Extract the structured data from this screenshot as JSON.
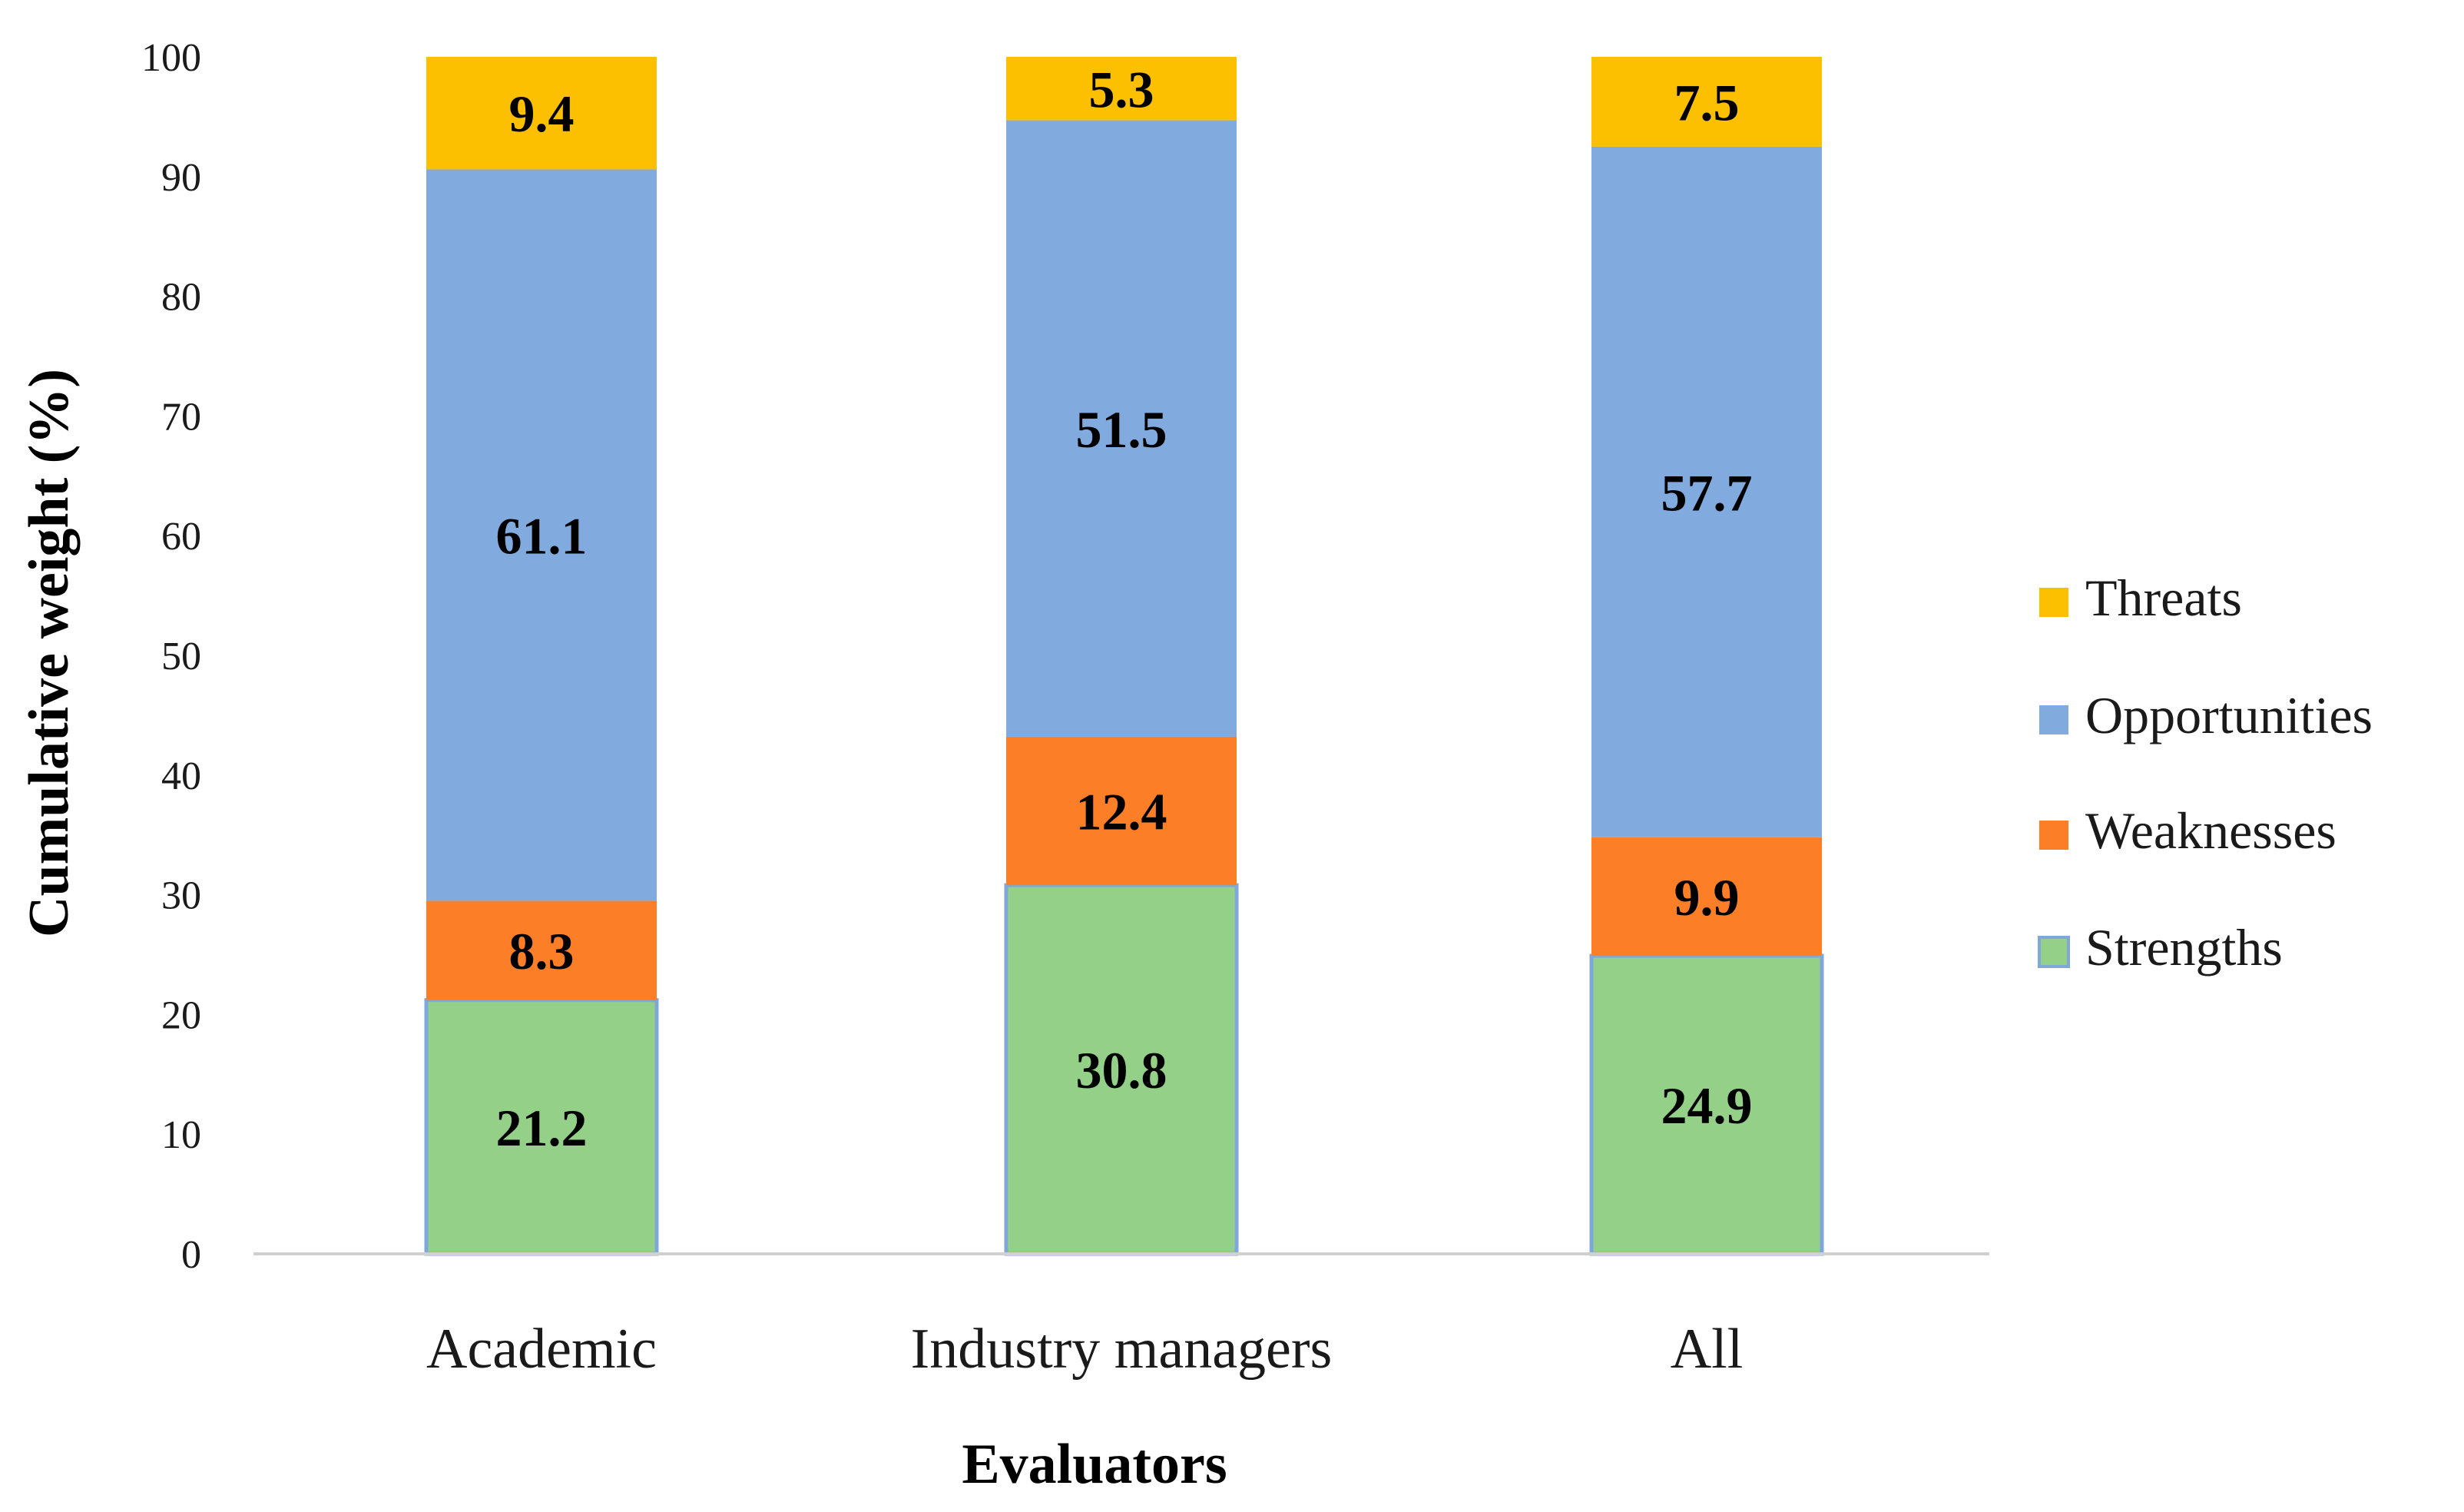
{
  "chart_data": {
    "type": "bar",
    "stacked": true,
    "title": "",
    "xlabel": "Evaluators",
    "ylabel": "Cumulative weight (%)",
    "ylim": [
      0,
      100
    ],
    "yticks": [
      0,
      10,
      20,
      30,
      40,
      50,
      60,
      70,
      80,
      90,
      100
    ],
    "categories": [
      "Academic",
      "Industry managers",
      "All"
    ],
    "series": [
      {
        "name": "Strengths",
        "color": "#95D089",
        "values": [
          21.2,
          30.8,
          24.9
        ]
      },
      {
        "name": "Weaknesses",
        "color": "#FC7E26",
        "values": [
          8.3,
          12.4,
          9.9
        ]
      },
      {
        "name": "Opportunities",
        "color": "#81AADE",
        "values": [
          61.1,
          51.5,
          57.7
        ]
      },
      {
        "name": "Threats",
        "color": "#FDC000",
        "values": [
          9.4,
          5.3,
          7.5
        ]
      }
    ],
    "legend_order": [
      "Threats",
      "Opportunities",
      "Weaknesses",
      "Strengths"
    ],
    "legend_position": "right"
  }
}
